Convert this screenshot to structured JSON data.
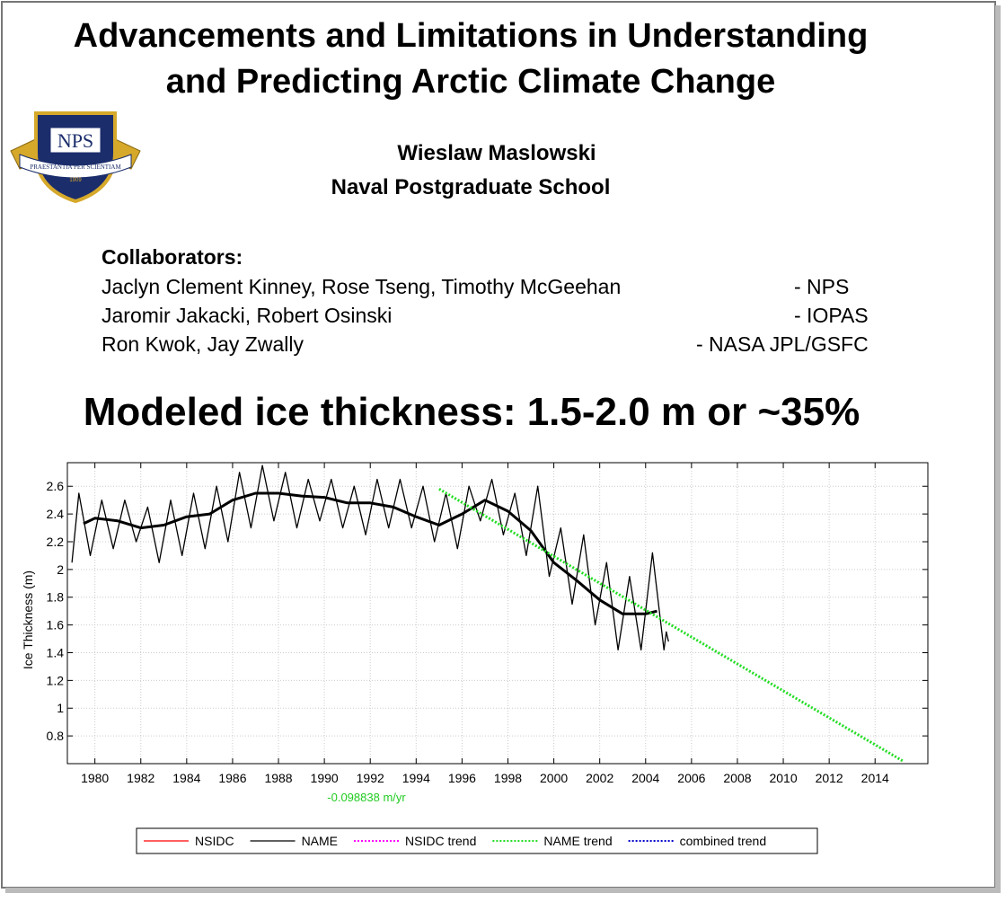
{
  "slide": {
    "title_lines": [
      "Advancements and Limitations in Understanding",
      "and Predicting Arctic Climate Change"
    ],
    "logo": {
      "text": "NPS",
      "motto": "PRAESTANTIA PER SCIENTIAM",
      "year": "1909"
    },
    "author": "Wieslaw Maslowski",
    "affiliation": "Naval Postgraduate School",
    "collaborators_heading": "Collaborators:",
    "collaborators": [
      {
        "names": "Jaclyn Clement Kinney, Rose Tseng, Timothy McGeehan",
        "org": "- NPS"
      },
      {
        "names": "Jaromir Jakacki, Robert Osinski",
        "org": "- IOPAS"
      },
      {
        "names": "Ron Kwok, Jay Zwally",
        "org": "- NASA JPL/GSFC"
      }
    ],
    "headline": "Modeled ice thickness: 1.5-2.0 m or ~35%"
  },
  "chart_data": {
    "type": "line",
    "y_label": "Ice Thickness (m)",
    "annotation": "-0.098838 m/yr",
    "annotation_color": "#22cc22",
    "xlim": [
      1978.8,
      2016.3
    ],
    "ylim": [
      0.6,
      2.77
    ],
    "xticks": [
      1980,
      1982,
      1984,
      1986,
      1988,
      1990,
      1992,
      1994,
      1996,
      1998,
      2000,
      2002,
      2004,
      2006,
      2008,
      2010,
      2012,
      2014
    ],
    "yticks": [
      0.8,
      1,
      1.2,
      1.4,
      1.6,
      1.8,
      2,
      2.2,
      2.4,
      2.6
    ],
    "grid": true,
    "legend": "bottom",
    "series": [
      {
        "name": "NSIDC",
        "color": "#ff0000",
        "width": 1.3,
        "x": [],
        "values": []
      },
      {
        "name": "NAME",
        "color": "#000000",
        "width": 1.3,
        "x": [
          1979,
          1979.3,
          1979.8,
          1980.3,
          1980.8,
          1981.3,
          1981.8,
          1982.3,
          1982.8,
          1983.3,
          1983.8,
          1984.3,
          1984.8,
          1985.3,
          1985.8,
          1986.3,
          1986.8,
          1987.3,
          1987.8,
          1988.3,
          1988.8,
          1989.3,
          1989.8,
          1990.3,
          1990.8,
          1991.3,
          1991.8,
          1992.3,
          1992.8,
          1993.3,
          1993.8,
          1994.3,
          1994.8,
          1995.3,
          1995.8,
          1996.3,
          1996.8,
          1997.3,
          1997.8,
          1998.3,
          1998.8,
          1999.3,
          1999.8,
          2000.3,
          2000.8,
          2001.3,
          2001.8,
          2002.3,
          2002.8,
          2003.3,
          2003.8,
          2004.3,
          2004.8,
          2004.9,
          2005.0
        ],
        "values": [
          2.05,
          2.55,
          2.1,
          2.5,
          2.15,
          2.5,
          2.2,
          2.45,
          2.05,
          2.5,
          2.1,
          2.55,
          2.15,
          2.6,
          2.2,
          2.7,
          2.3,
          2.75,
          2.35,
          2.7,
          2.3,
          2.65,
          2.35,
          2.65,
          2.3,
          2.6,
          2.25,
          2.65,
          2.3,
          2.65,
          2.3,
          2.6,
          2.2,
          2.55,
          2.15,
          2.6,
          2.35,
          2.65,
          2.25,
          2.55,
          2.1,
          2.6,
          1.95,
          2.3,
          1.75,
          2.25,
          1.6,
          2.05,
          1.42,
          1.95,
          1.42,
          2.12,
          1.42,
          1.55,
          1.48
        ]
      },
      {
        "color": "#000000",
        "width": 3,
        "x": [
          1979.5,
          1980,
          1981,
          1982,
          1983,
          1984,
          1985,
          1986,
          1987,
          1988,
          1989,
          1990,
          1991,
          1992,
          1993,
          1994,
          1995,
          1996,
          1997,
          1998,
          1999,
          2000,
          2001,
          2002,
          2003,
          2004,
          2004.5
        ],
        "values": [
          2.33,
          2.37,
          2.35,
          2.3,
          2.32,
          2.38,
          2.4,
          2.5,
          2.55,
          2.55,
          2.53,
          2.52,
          2.48,
          2.48,
          2.45,
          2.38,
          2.32,
          2.4,
          2.5,
          2.42,
          2.28,
          2.05,
          1.92,
          1.78,
          1.68,
          1.68,
          1.7
        ]
      },
      {
        "name": "NSIDC trend",
        "color": "#ff00ff",
        "width": 2,
        "style": "dotted",
        "x": [],
        "values": []
      },
      {
        "name": "NAME trend",
        "color": "#22dd22",
        "width": 3,
        "style": "dotted",
        "x": [
          1995,
          2015.2
        ],
        "values": [
          2.58,
          0.62
        ]
      },
      {
        "name": "combined trend",
        "color": "#0000cc",
        "width": 2,
        "style": "dotted",
        "x": [],
        "values": []
      }
    ]
  }
}
